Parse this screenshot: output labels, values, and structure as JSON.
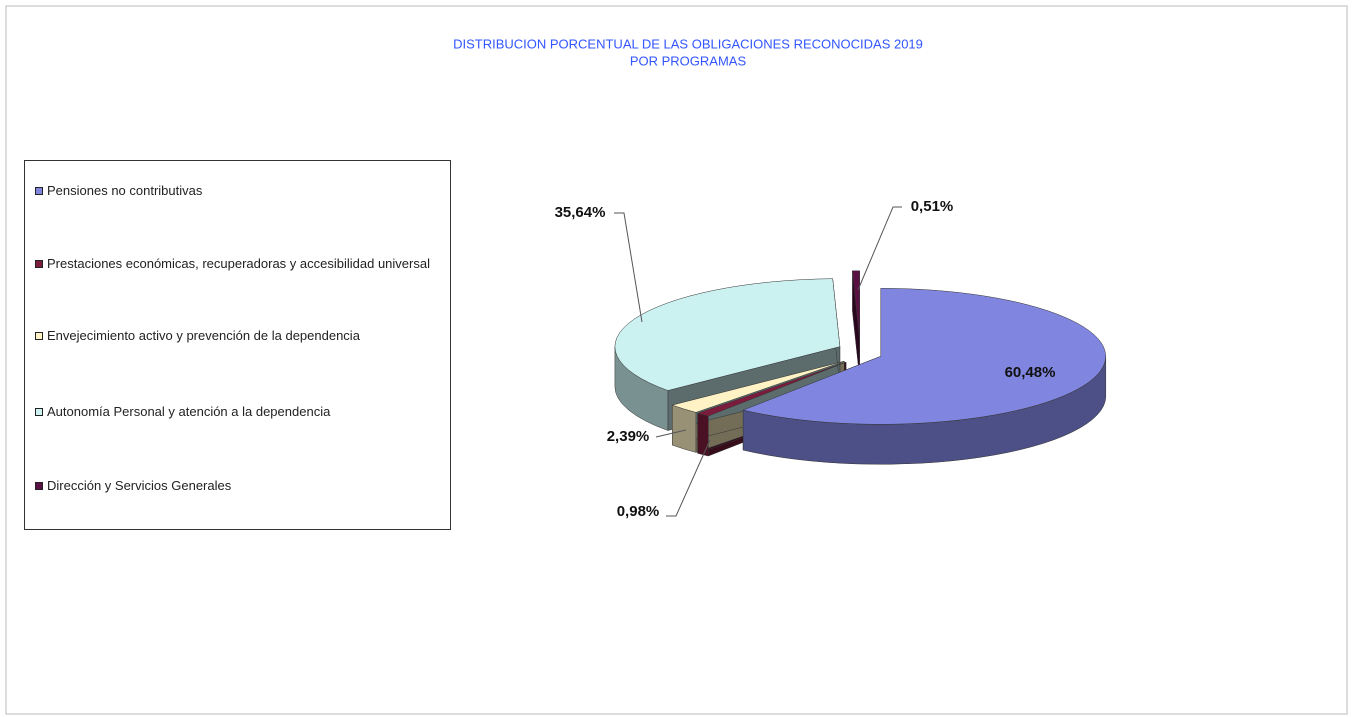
{
  "chart_data": {
    "type": "pie3d",
    "title": [
      "DISTRIBUCION PORCENTUAL DE LAS OBLIGACIONES RECONOCIDAS 2019",
      "POR PROGRAMAS"
    ],
    "categories": [
      "Pensiones no contributivas",
      "Prestaciones económicas,  recuperadoras y accesibilidad universal",
      "Envejecimiento activo y prevención de la dependencia",
      "Autonomía Personal y atención a la dependencia",
      "Dirección y Servicios Generales"
    ],
    "values": [
      60.48,
      0.98,
      2.39,
      35.64,
      0.51
    ],
    "value_labels": [
      "60,48%",
      "0,98%",
      "2,39%",
      "35,64%",
      "0,51%"
    ],
    "colors": [
      "#8086e0",
      "#7b1c3c",
      "#fff2c4",
      "#ccf1f1",
      "#5a1042"
    ],
    "legend": "left"
  }
}
